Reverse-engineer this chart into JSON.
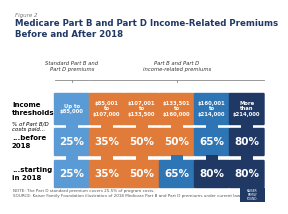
{
  "title": "Medicare Part B and Part D Income-Related Premiums\nBefore and After 2018",
  "figure_label": "Figure 2",
  "header_standard": "Standard Part B and\nPart D premiums",
  "header_income": "Part B and Part D\nincome-related premiums",
  "thresholds": [
    "Up to\n$85,000",
    "$85,001\nto\n$107,000",
    "$107,001\nto\n$133,500",
    "$133,501\nto\n$160,000",
    "$160,001\nto\n$214,000",
    "More\nthan\n$214,000"
  ],
  "before_2018": [
    "25%",
    "35%",
    "50%",
    "50%",
    "65%",
    "80%"
  ],
  "starting_2018": [
    "25%",
    "35%",
    "50%",
    "65%",
    "80%",
    "80%"
  ],
  "colors_thresh": [
    "#5b9bd5",
    "#e07b39",
    "#e07b39",
    "#e07b39",
    "#2e75b6",
    "#1f3864"
  ],
  "colors_before": [
    "#5b9bd5",
    "#e07b39",
    "#e07b39",
    "#e07b39",
    "#2e75b6",
    "#1f3864"
  ],
  "colors_starting": [
    "#5b9bd5",
    "#e07b39",
    "#e07b39",
    "#2e75b6",
    "#1f3864",
    "#1f3864"
  ],
  "row_label_income": "Income\nthresholds",
  "row_label_pct": "% of Part B/D\ncosts paid...",
  "row_label_before": "...before\n2018",
  "row_label_starting": "...starting\nin 2018",
  "note1": "NOTE: The Part D standard premium covers 25.5% of program costs.",
  "note2": "SOURCE: Kaiser Family Foundation illustration of 2018 Medicare Part B and Part D premiums under current law.",
  "connector_color": "#5b9bd5",
  "connector_colors": [
    "#5b9bd5",
    "#e07b39",
    "#e07b39",
    "#e07b39",
    "#2e75b6",
    "#1f3864"
  ]
}
